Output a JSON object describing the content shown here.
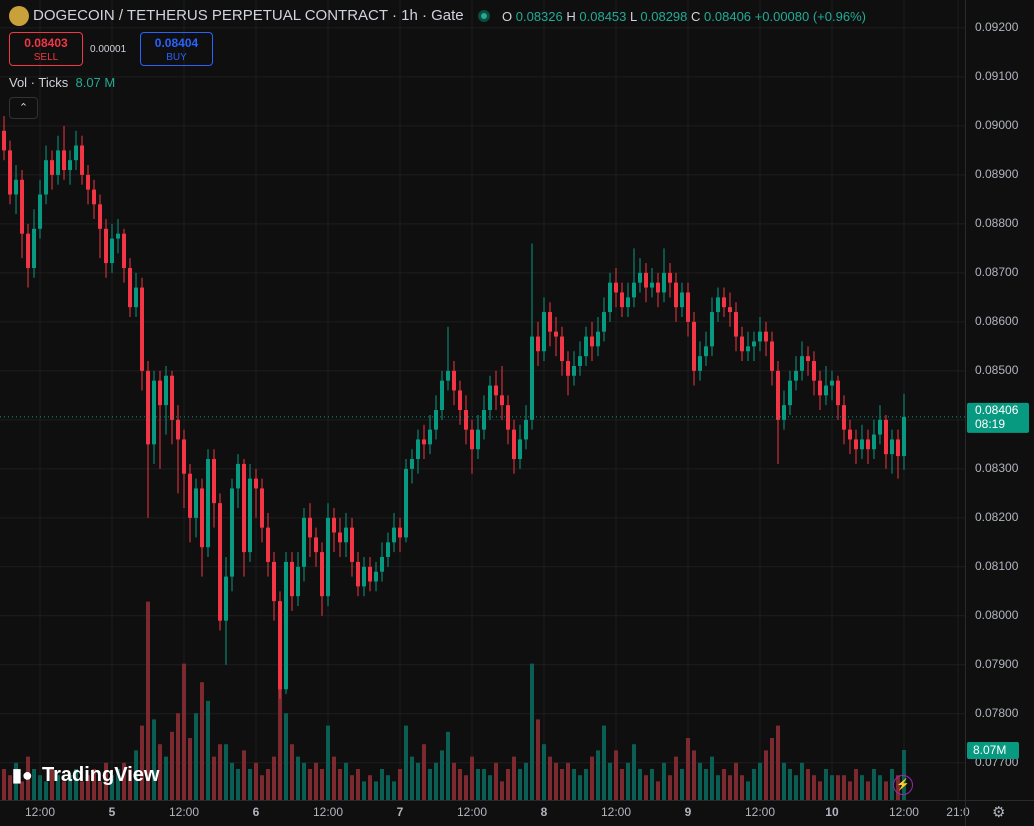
{
  "header": {
    "title": "DOGECOIN / TETHERUS PERPETUAL CONTRACT · 1h · Gate",
    "o": "O",
    "h": "H",
    "l": "L",
    "c": "C",
    "change": "+0.00080 (+0.96%)",
    "sell_price": "0.08403",
    "sell": "SELL",
    "spread": "0.00001",
    "buy_price": "0.08404",
    "buy": "BUY",
    "volume_title": "Vol · Ticks",
    "volume_header": "8.07 M",
    "volume_badge": "8.07M",
    "countdown": "08:19",
    "brand": "TradingView"
  },
  "chart_data": {
    "type": "candlestick",
    "xlim": [
      -0.67,
      160.17
    ],
    "xticks": [
      {
        "value": 6,
        "label": "12:00"
      },
      {
        "value": 18,
        "label": "5"
      },
      {
        "value": 30,
        "label": "12:00"
      },
      {
        "value": 42,
        "label": "6"
      },
      {
        "value": 54,
        "label": "12:00"
      },
      {
        "value": 66,
        "label": "7"
      },
      {
        "value": 78,
        "label": "12:00"
      },
      {
        "value": 90,
        "label": "8"
      },
      {
        "value": 102,
        "label": "12:00"
      },
      {
        "value": 114,
        "label": "9"
      },
      {
        "value": 126,
        "label": "12:00"
      },
      {
        "value": 138,
        "label": "10"
      },
      {
        "value": 150,
        "label": "12:00"
      },
      {
        "value": 159,
        "label": "21:0"
      }
    ],
    "ylim": [
      0.07624,
      0.09257
    ],
    "yticks": [
      {
        "value": 0.092,
        "label": "0.09200"
      },
      {
        "value": 0.091,
        "label": "0.09100"
      },
      {
        "value": 0.09,
        "label": "0.09000"
      },
      {
        "value": 0.089,
        "label": "0.08900"
      },
      {
        "value": 0.088,
        "label": "0.08800"
      },
      {
        "value": 0.087,
        "label": "0.08700"
      },
      {
        "value": 0.086,
        "label": "0.08600"
      },
      {
        "value": 0.085,
        "label": "0.08500"
      },
      {
        "value": 0.084,
        "label": "0.08400"
      },
      {
        "value": 0.083,
        "label": "0.08300"
      },
      {
        "value": 0.082,
        "label": "0.08200"
      },
      {
        "value": 0.081,
        "label": "0.08100"
      },
      {
        "value": 0.08,
        "label": "0.08000"
      },
      {
        "value": 0.079,
        "label": "0.07900"
      },
      {
        "value": 0.078,
        "label": "0.07800"
      },
      {
        "value": 0.077,
        "label": "0.07700"
      }
    ],
    "grid": true,
    "up_color": "#089981",
    "down_color": "#f23645",
    "volume_up_color": "#0b5e53",
    "volume_down_color": "#7c2a30",
    "volume_lim": [
      0,
      40
    ],
    "open": [
      0.0899,
      0.0895,
      0.0886,
      0.0889,
      0.0878,
      0.0871,
      0.0879,
      0.0886,
      0.0893,
      0.089,
      0.0895,
      0.0891,
      0.0893,
      0.0896,
      0.089,
      0.0887,
      0.0884,
      0.0879,
      0.0872,
      0.0877,
      0.0878,
      0.0871,
      0.0863,
      0.0867,
      0.085,
      0.0835,
      0.0848,
      0.0843,
      0.0849,
      0.084,
      0.0836,
      0.0829,
      0.082,
      0.0826,
      0.0814,
      0.0832,
      0.0823,
      0.0799,
      0.0808,
      0.0826,
      0.0831,
      0.0813,
      0.0828,
      0.0826,
      0.0818,
      0.0811,
      0.0803,
      0.0785,
      0.0811,
      0.0804,
      0.081,
      0.082,
      0.0816,
      0.0813,
      0.0804,
      0.082,
      0.0817,
      0.0815,
      0.0818,
      0.0811,
      0.0806,
      0.081,
      0.0807,
      0.0809,
      0.0812,
      0.0815,
      0.0818,
      0.0816,
      0.083,
      0.0832,
      0.0836,
      0.0835,
      0.0838,
      0.0842,
      0.0848,
      0.085,
      0.0846,
      0.0842,
      0.0838,
      0.0834,
      0.0838,
      0.0842,
      0.0847,
      0.0845,
      0.0843,
      0.0838,
      0.0832,
      0.0836,
      0.084,
      0.0857,
      0.0854,
      0.0862,
      0.0858,
      0.0857,
      0.0852,
      0.0849,
      0.0851,
      0.0853,
      0.0857,
      0.0855,
      0.0858,
      0.0862,
      0.0868,
      0.0866,
      0.0863,
      0.0865,
      0.0868,
      0.087,
      0.0867,
      0.0868,
      0.0866,
      0.087,
      0.0868,
      0.0863,
      0.0866,
      0.086,
      0.085,
      0.0853,
      0.0855,
      0.0862,
      0.0865,
      0.0863,
      0.0862,
      0.0857,
      0.0854,
      0.0855,
      0.0856,
      0.0858,
      0.0856,
      0.085,
      0.084,
      0.0843,
      0.0848,
      0.085,
      0.0853,
      0.0852,
      0.0848,
      0.0845,
      0.0847,
      0.0848,
      0.0843,
      0.0838,
      0.0836,
      0.0834,
      0.0836,
      0.0834,
      0.0837,
      0.084,
      0.0833,
      0.0836,
      0.08326
    ],
    "high": [
      0.0902,
      0.0897,
      0.0892,
      0.0891,
      0.088,
      0.0883,
      0.0889,
      0.0896,
      0.0895,
      0.0898,
      0.09,
      0.0895,
      0.0899,
      0.0898,
      0.0892,
      0.0889,
      0.0886,
      0.0881,
      0.088,
      0.0881,
      0.0879,
      0.0873,
      0.087,
      0.0869,
      0.0852,
      0.085,
      0.085,
      0.0851,
      0.085,
      0.0843,
      0.0838,
      0.0831,
      0.0828,
      0.0828,
      0.0834,
      0.0834,
      0.0825,
      0.0812,
      0.0828,
      0.0833,
      0.0832,
      0.0831,
      0.083,
      0.0828,
      0.0821,
      0.0813,
      0.0805,
      0.0813,
      0.0813,
      0.0813,
      0.0822,
      0.0823,
      0.0818,
      0.0815,
      0.0823,
      0.0822,
      0.082,
      0.0821,
      0.082,
      0.0813,
      0.0812,
      0.0812,
      0.0811,
      0.0815,
      0.0817,
      0.0821,
      0.082,
      0.0832,
      0.0834,
      0.0838,
      0.0839,
      0.0841,
      0.0845,
      0.085,
      0.0859,
      0.0852,
      0.0848,
      0.0845,
      0.084,
      0.0841,
      0.0845,
      0.0849,
      0.085,
      0.0851,
      0.0845,
      0.084,
      0.0839,
      0.0843,
      0.0876,
      0.086,
      0.0865,
      0.0864,
      0.0861,
      0.0859,
      0.0854,
      0.0854,
      0.0856,
      0.0859,
      0.086,
      0.0861,
      0.0865,
      0.087,
      0.0871,
      0.0868,
      0.0868,
      0.0875,
      0.0873,
      0.0872,
      0.0871,
      0.087,
      0.0875,
      0.0872,
      0.087,
      0.0868,
      0.0868,
      0.0862,
      0.0856,
      0.0858,
      0.0865,
      0.0867,
      0.0867,
      0.0866,
      0.0864,
      0.0859,
      0.0858,
      0.0858,
      0.0861,
      0.086,
      0.0858,
      0.0852,
      0.0846,
      0.085,
      0.0853,
      0.0856,
      0.0855,
      0.0854,
      0.085,
      0.0851,
      0.085,
      0.0849,
      0.0845,
      0.084,
      0.0838,
      0.0839,
      0.0838,
      0.084,
      0.0843,
      0.0841,
      0.0838,
      0.0838,
      0.08453
    ],
    "low": [
      0.0893,
      0.0884,
      0.0882,
      0.0873,
      0.0867,
      0.0869,
      0.0877,
      0.0884,
      0.0887,
      0.0888,
      0.0889,
      0.0888,
      0.0891,
      0.0888,
      0.0884,
      0.0881,
      0.0873,
      0.0869,
      0.087,
      0.0874,
      0.0868,
      0.0861,
      0.0861,
      0.0846,
      0.082,
      0.0831,
      0.083,
      0.0837,
      0.0835,
      0.0825,
      0.0822,
      0.0815,
      0.0816,
      0.0808,
      0.0812,
      0.0818,
      0.0797,
      0.079,
      0.0805,
      0.0822,
      0.0808,
      0.0811,
      0.082,
      0.0815,
      0.0808,
      0.0799,
      0.0783,
      0.0784,
      0.0801,
      0.0802,
      0.0807,
      0.0812,
      0.081,
      0.08,
      0.0802,
      0.0813,
      0.0812,
      0.0812,
      0.0808,
      0.0804,
      0.0804,
      0.0805,
      0.0805,
      0.0807,
      0.081,
      0.0813,
      0.0813,
      0.0815,
      0.0827,
      0.0829,
      0.0832,
      0.0833,
      0.0836,
      0.084,
      0.0846,
      0.0843,
      0.0839,
      0.0835,
      0.0829,
      0.0832,
      0.0836,
      0.084,
      0.0842,
      0.084,
      0.0835,
      0.0829,
      0.083,
      0.0834,
      0.0838,
      0.0851,
      0.0852,
      0.0855,
      0.0853,
      0.0849,
      0.0845,
      0.0847,
      0.0849,
      0.0851,
      0.0852,
      0.0853,
      0.0856,
      0.086,
      0.0863,
      0.0861,
      0.0861,
      0.0863,
      0.0866,
      0.0864,
      0.0865,
      0.0863,
      0.0864,
      0.0865,
      0.086,
      0.0861,
      0.0857,
      0.0847,
      0.0848,
      0.0851,
      0.0853,
      0.086,
      0.0861,
      0.0859,
      0.0854,
      0.0852,
      0.0852,
      0.0852,
      0.0854,
      0.0853,
      0.0847,
      0.0831,
      0.0838,
      0.0841,
      0.0846,
      0.0848,
      0.0849,
      0.0845,
      0.0842,
      0.0843,
      0.0844,
      0.084,
      0.0835,
      0.0833,
      0.0831,
      0.0832,
      0.0831,
      0.0832,
      0.0835,
      0.083,
      0.0829,
      0.0828,
      0.08298
    ],
    "close": [
      0.0895,
      0.0886,
      0.0889,
      0.0878,
      0.0871,
      0.0879,
      0.0886,
      0.0893,
      0.089,
      0.0895,
      0.0891,
      0.0893,
      0.0896,
      0.089,
      0.0887,
      0.0884,
      0.0879,
      0.0872,
      0.0877,
      0.0878,
      0.0871,
      0.0863,
      0.0867,
      0.085,
      0.0835,
      0.0848,
      0.0843,
      0.0849,
      0.084,
      0.0836,
      0.0829,
      0.082,
      0.0826,
      0.0814,
      0.0832,
      0.0823,
      0.0799,
      0.0808,
      0.0826,
      0.0831,
      0.0813,
      0.0828,
      0.0826,
      0.0818,
      0.0811,
      0.0803,
      0.0785,
      0.0811,
      0.0804,
      0.081,
      0.082,
      0.0816,
      0.0813,
      0.0804,
      0.082,
      0.0817,
      0.0815,
      0.0818,
      0.0811,
      0.0806,
      0.081,
      0.0807,
      0.0809,
      0.0812,
      0.0815,
      0.0818,
      0.0816,
      0.083,
      0.0832,
      0.0836,
      0.0835,
      0.0838,
      0.0842,
      0.0848,
      0.085,
      0.0846,
      0.0842,
      0.0838,
      0.0834,
      0.0838,
      0.0842,
      0.0847,
      0.0845,
      0.0843,
      0.0838,
      0.0832,
      0.0836,
      0.084,
      0.0857,
      0.0854,
      0.0862,
      0.0858,
      0.0857,
      0.0852,
      0.0849,
      0.0851,
      0.0853,
      0.0857,
      0.0855,
      0.0858,
      0.0862,
      0.0868,
      0.0866,
      0.0863,
      0.0865,
      0.0868,
      0.087,
      0.0867,
      0.0868,
      0.0866,
      0.087,
      0.0868,
      0.0863,
      0.0866,
      0.086,
      0.085,
      0.0853,
      0.0855,
      0.0862,
      0.0865,
      0.0863,
      0.0862,
      0.0857,
      0.0854,
      0.0855,
      0.0856,
      0.0858,
      0.0856,
      0.085,
      0.084,
      0.0843,
      0.0848,
      0.085,
      0.0853,
      0.0852,
      0.0848,
      0.0845,
      0.0847,
      0.0848,
      0.0843,
      0.0838,
      0.0836,
      0.0834,
      0.0836,
      0.0834,
      0.0837,
      0.084,
      0.0833,
      0.0836,
      0.08326,
      0.08406
    ],
    "volume": [
      5,
      4,
      6,
      3,
      7,
      5,
      4,
      3,
      5,
      4,
      3,
      4,
      5,
      3,
      4,
      5,
      3,
      6,
      4,
      5,
      6,
      5,
      8,
      12,
      32,
      13,
      9,
      7,
      11,
      14,
      22,
      10,
      14,
      19,
      16,
      7,
      9,
      9,
      6,
      5,
      8,
      5,
      6,
      4,
      5,
      7,
      18,
      14,
      9,
      7,
      6,
      5,
      6,
      5,
      12,
      7,
      5,
      6,
      4,
      5,
      3,
      4,
      3,
      5,
      4,
      3,
      5,
      12,
      7,
      6,
      9,
      5,
      6,
      8,
      11,
      6,
      5,
      4,
      7,
      5,
      5,
      4,
      6,
      3,
      5,
      7,
      5,
      6,
      22,
      13,
      9,
      7,
      6,
      5,
      6,
      5,
      4,
      5,
      7,
      8,
      12,
      6,
      8,
      5,
      6,
      9,
      5,
      4,
      5,
      3,
      6,
      4,
      7,
      5,
      10,
      8,
      6,
      5,
      7,
      4,
      5,
      4,
      6,
      4,
      3,
      5,
      6,
      8,
      10,
      12,
      6,
      5,
      4,
      6,
      5,
      4,
      3,
      5,
      4,
      4,
      4,
      3,
      5,
      4,
      3,
      5,
      4,
      3,
      5,
      4,
      8.07
    ]
  }
}
